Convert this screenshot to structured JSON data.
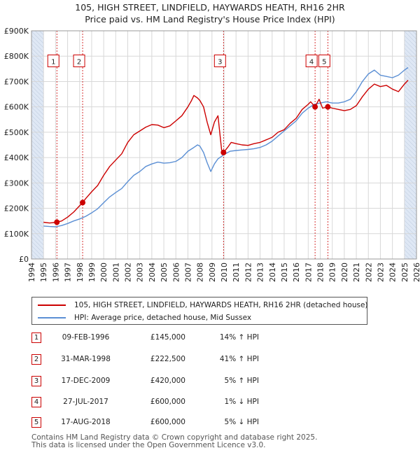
{
  "title": {
    "line1": "105, HIGH STREET, LINDFIELD, HAYWARDS HEATH, RH16 2HR",
    "line2": "Price paid vs. HM Land Registry's House Price Index (HPI)"
  },
  "colors": {
    "property": "#cc0000",
    "hpi": "#5b8fd4",
    "shade": "#dfe8f5",
    "marker_line": "#cc0000"
  },
  "legend": {
    "property_label": "105, HIGH STREET, LINDFIELD, HAYWARDS HEATH, RH16 2HR (detached house)",
    "hpi_label": "HPI: Average price, detached house, Mid Sussex"
  },
  "chart_data": {
    "type": "line",
    "title": "Price paid vs. HM Land Registry's House Price Index (HPI)",
    "xlim": [
      1994,
      2026
    ],
    "ylim": [
      0,
      900000
    ],
    "x_ticks": [
      1994,
      1995,
      1996,
      1997,
      1998,
      1999,
      2000,
      2001,
      2002,
      2003,
      2004,
      2005,
      2006,
      2007,
      2008,
      2009,
      2010,
      2011,
      2012,
      2013,
      2014,
      2015,
      2016,
      2017,
      2018,
      2019,
      2020,
      2021,
      2022,
      2023,
      2024,
      2025,
      2026
    ],
    "y_ticks": [
      {
        "value": 0,
        "label": "£0"
      },
      {
        "value": 100000,
        "label": "£100K"
      },
      {
        "value": 200000,
        "label": "£200K"
      },
      {
        "value": 300000,
        "label": "£300K"
      },
      {
        "value": 400000,
        "label": "£400K"
      },
      {
        "value": 500000,
        "label": "£500K"
      },
      {
        "value": 600000,
        "label": "£600K"
      },
      {
        "value": 700000,
        "label": "£700K"
      },
      {
        "value": 800000,
        "label": "£800K"
      },
      {
        "value": 900000,
        "label": "£900K"
      }
    ],
    "shaded_ranges": [
      [
        1994,
        1995.0
      ],
      [
        2025.0,
        2026
      ]
    ],
    "series": [
      {
        "name": "105, HIGH STREET, LINDFIELD, HAYWARDS HEATH, RH16 2HR (detached house)",
        "color": "#cc0000",
        "x": [
          1995.0,
          1995.5,
          1996.1,
          1996.5,
          1997.0,
          1997.5,
          1998.0,
          1998.25,
          1998.5,
          1999.0,
          1999.5,
          2000.0,
          2000.5,
          2001.0,
          2001.5,
          2002.0,
          2002.5,
          2003.0,
          2003.5,
          2004.0,
          2004.5,
          2005.0,
          2005.5,
          2006.0,
          2006.5,
          2007.0,
          2007.3,
          2007.5,
          2007.8,
          2008.0,
          2008.3,
          2008.6,
          2008.9,
          2009.2,
          2009.5,
          2009.8,
          2009.96,
          2010.3,
          2010.6,
          2011.0,
          2011.5,
          2012.0,
          2012.5,
          2013.0,
          2013.5,
          2014.0,
          2014.5,
          2015.0,
          2015.5,
          2016.0,
          2016.5,
          2017.0,
          2017.2,
          2017.57,
          2017.9,
          2018.2,
          2018.63,
          2019.0,
          2019.5,
          2020.0,
          2020.5,
          2021.0,
          2021.5,
          2022.0,
          2022.5,
          2023.0,
          2023.5,
          2024.0,
          2024.5,
          2025.0,
          2025.3
        ],
        "y": [
          145000,
          142000,
          145000,
          150000,
          165000,
          185000,
          210000,
          222500,
          238000,
          265000,
          290000,
          330000,
          365000,
          390000,
          415000,
          460000,
          490000,
          505000,
          520000,
          530000,
          528000,
          518000,
          525000,
          545000,
          565000,
          600000,
          625000,
          645000,
          635000,
          625000,
          600000,
          540000,
          490000,
          540000,
          565000,
          430000,
          420000,
          440000,
          460000,
          455000,
          450000,
          448000,
          455000,
          460000,
          470000,
          480000,
          500000,
          510000,
          535000,
          555000,
          590000,
          610000,
          620000,
          600000,
          630000,
          595000,
          600000,
          595000,
          590000,
          585000,
          590000,
          605000,
          640000,
          670000,
          690000,
          680000,
          685000,
          670000,
          660000,
          690000,
          705000
        ]
      },
      {
        "name": "HPI: Average price, detached house, Mid Sussex",
        "color": "#5b8fd4",
        "x": [
          1995.0,
          1995.5,
          1996.0,
          1996.5,
          1997.0,
          1997.5,
          1998.0,
          1998.5,
          1999.0,
          1999.5,
          2000.0,
          2000.5,
          2001.0,
          2001.5,
          2002.0,
          2002.5,
          2003.0,
          2003.5,
          2004.0,
          2004.5,
          2005.0,
          2005.5,
          2006.0,
          2006.5,
          2007.0,
          2007.5,
          2007.8,
          2008.0,
          2008.3,
          2008.6,
          2008.9,
          2009.2,
          2009.5,
          2009.8,
          2010.0,
          2010.5,
          2011.0,
          2011.5,
          2012.0,
          2012.5,
          2013.0,
          2013.5,
          2014.0,
          2014.5,
          2015.0,
          2015.5,
          2016.0,
          2016.5,
          2017.0,
          2017.5,
          2018.0,
          2018.5,
          2019.0,
          2019.5,
          2020.0,
          2020.5,
          2021.0,
          2021.5,
          2022.0,
          2022.5,
          2023.0,
          2023.5,
          2024.0,
          2024.5,
          2025.0,
          2025.3
        ],
        "y": [
          130000,
          128000,
          127000,
          132000,
          140000,
          150000,
          158000,
          168000,
          182000,
          198000,
          222000,
          245000,
          262000,
          278000,
          305000,
          330000,
          345000,
          365000,
          375000,
          382000,
          378000,
          380000,
          385000,
          400000,
          425000,
          440000,
          450000,
          445000,
          420000,
          380000,
          345000,
          375000,
          395000,
          405000,
          412000,
          425000,
          428000,
          430000,
          432000,
          435000,
          440000,
          450000,
          465000,
          485000,
          505000,
          525000,
          545000,
          575000,
          595000,
          610000,
          615000,
          620000,
          615000,
          615000,
          620000,
          630000,
          660000,
          700000,
          730000,
          745000,
          725000,
          720000,
          715000,
          725000,
          745000,
          755000
        ]
      }
    ],
    "sales": [
      {
        "id": "1",
        "x": 1996.11,
        "price": 145000,
        "date": "09-FEB-1996",
        "price_label": "£145,000",
        "hpi_label": "14% ↑ HPI"
      },
      {
        "id": "2",
        "x": 1998.25,
        "price": 222500,
        "date": "31-MAR-1998",
        "price_label": "£222,500",
        "hpi_label": "41% ↑ HPI"
      },
      {
        "id": "3",
        "x": 2009.96,
        "price": 420000,
        "date": "17-DEC-2009",
        "price_label": "£420,000",
        "hpi_label": "5% ↑ HPI"
      },
      {
        "id": "4",
        "x": 2017.57,
        "price": 600000,
        "date": "27-JUL-2017",
        "price_label": "£600,000",
        "hpi_label": "1% ↓ HPI"
      },
      {
        "id": "5",
        "x": 2018.63,
        "price": 600000,
        "date": "17-AUG-2018",
        "price_label": "£600,000",
        "hpi_label": "5% ↓ HPI"
      }
    ],
    "marker_box_value": 780000
  },
  "footer": {
    "line1": "Contains HM Land Registry data © Crown copyright and database right 2025.",
    "line2": "This data is licensed under the Open Government Licence v3.0."
  }
}
